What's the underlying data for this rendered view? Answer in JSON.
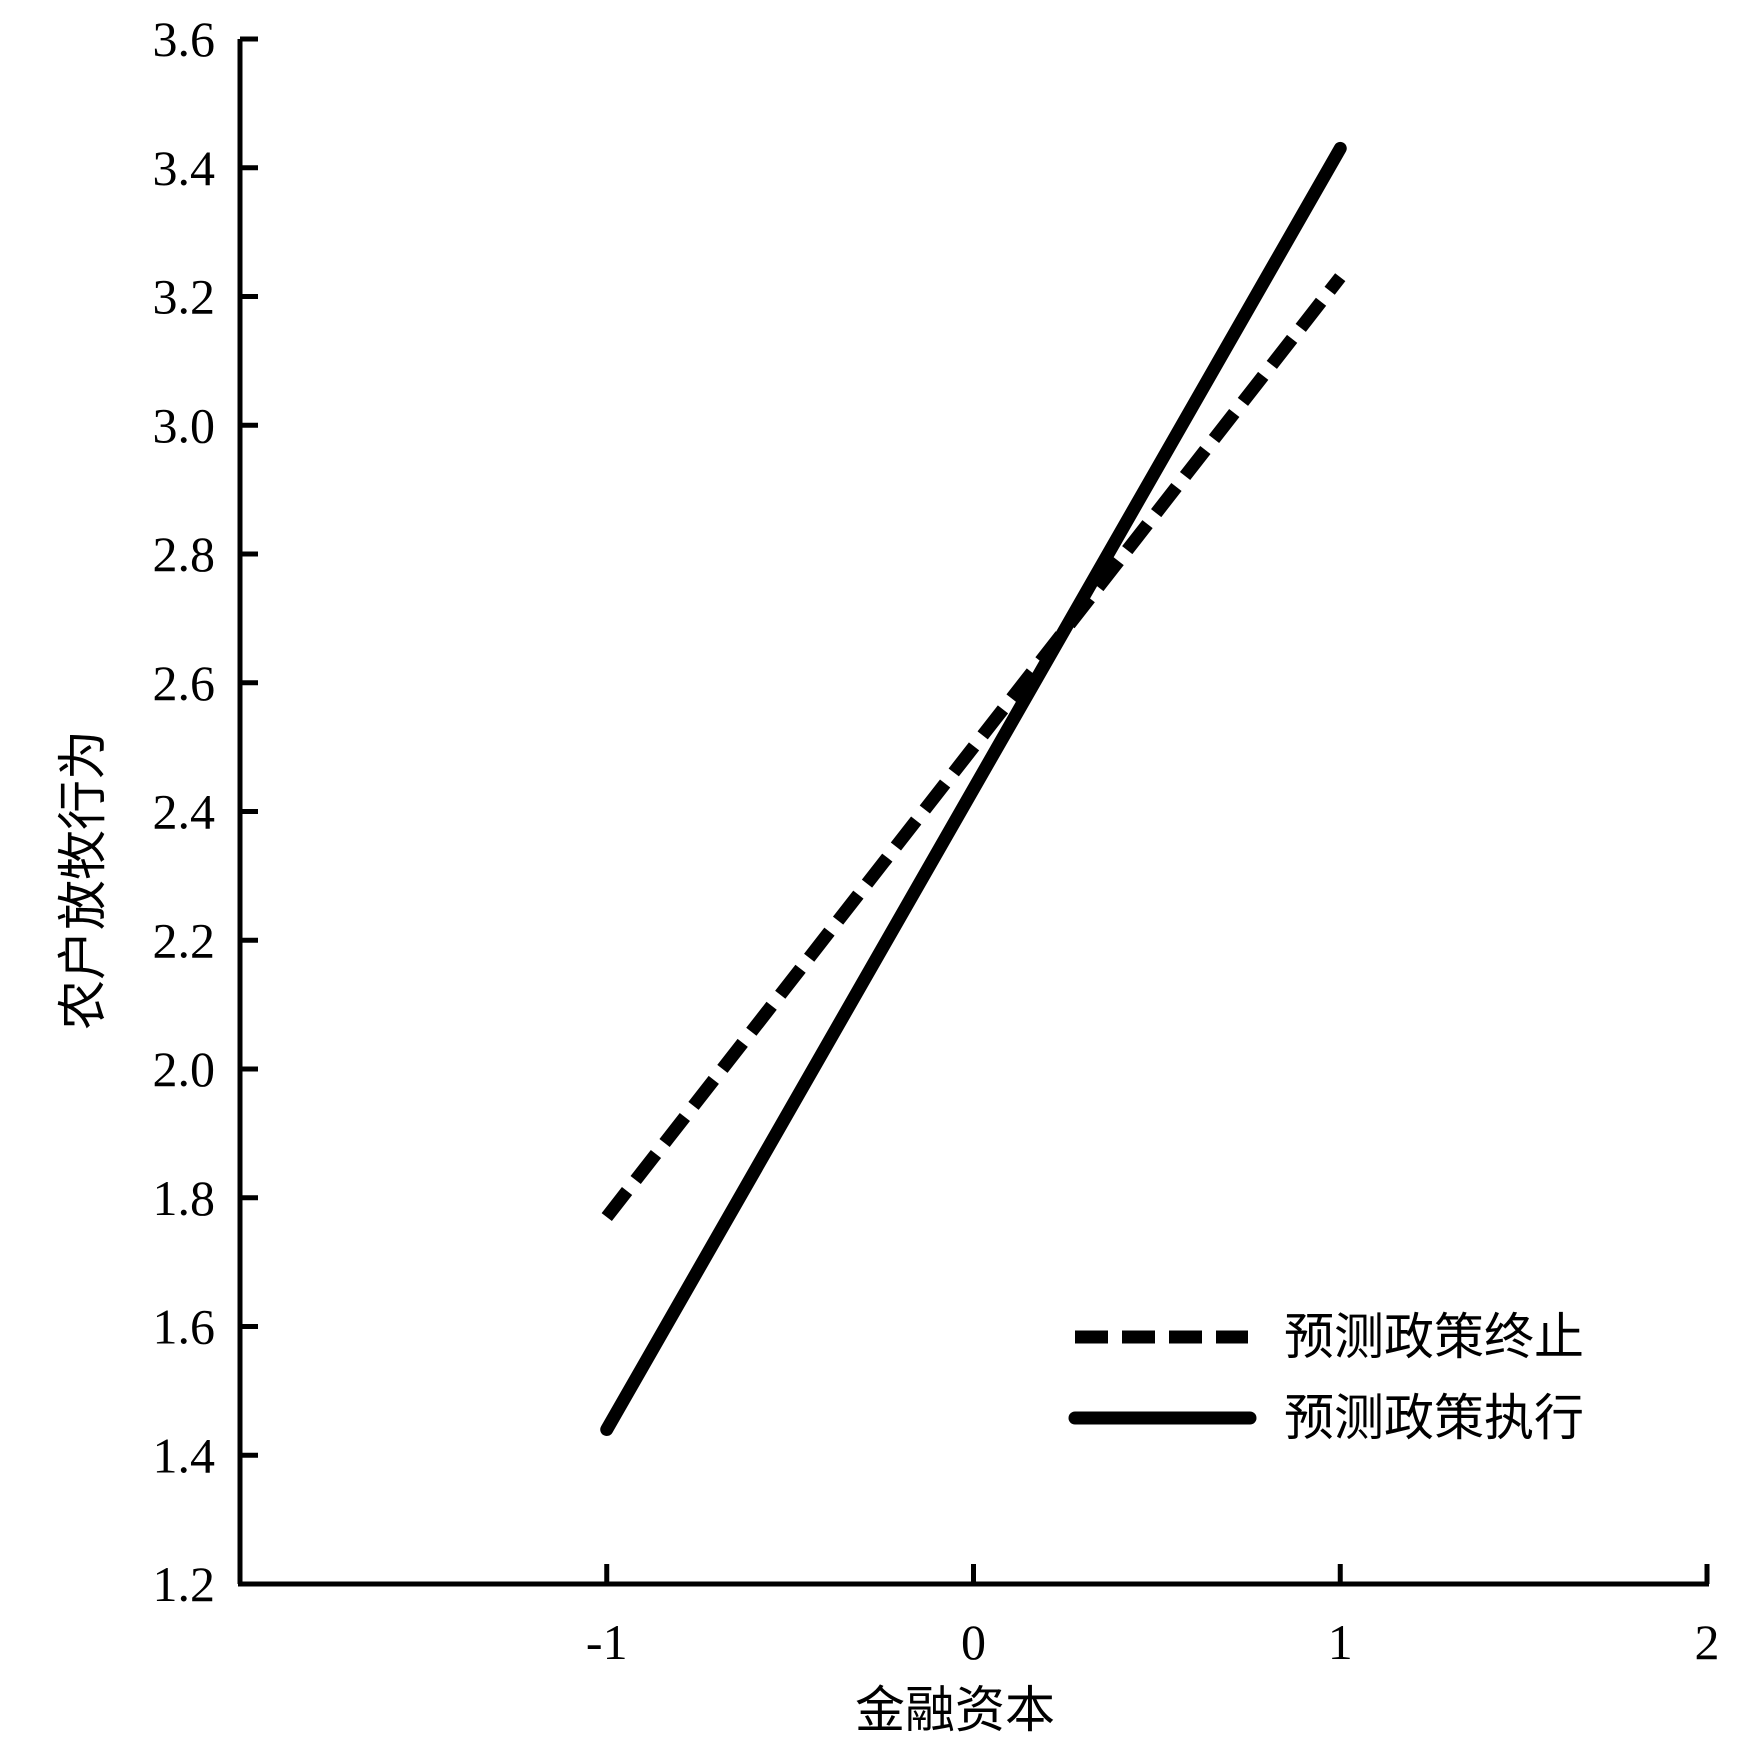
{
  "chart_data": {
    "type": "line",
    "xlabel": "金融资本",
    "ylabel": "农户放牧行为",
    "xlim": [
      -2,
      2
    ],
    "ylim": [
      1.2,
      3.6
    ],
    "x_ticks": [
      -1,
      0,
      1,
      2
    ],
    "x_tick_labels": [
      "-1",
      "0",
      "1",
      "2"
    ],
    "y_ticks": [
      1.2,
      1.4,
      1.6,
      1.8,
      2.0,
      2.2,
      2.4,
      2.6,
      2.8,
      3.0,
      3.2,
      3.4,
      3.6
    ],
    "y_tick_labels": [
      "1.2",
      "1.4",
      "1.6",
      "1.8",
      "2.0",
      "2.2",
      "2.4",
      "2.6",
      "2.8",
      "3.0",
      "3.2",
      "3.4",
      "3.6"
    ],
    "grid": false,
    "legend_position": "bottom-right",
    "series": [
      {
        "name": "预测政策终止",
        "style": "dashed",
        "color": "#000000",
        "x": [
          -1,
          1
        ],
        "y": [
          1.77,
          3.23
        ]
      },
      {
        "name": "预测政策执行",
        "style": "solid",
        "color": "#000000",
        "x": [
          -1,
          1
        ],
        "y": [
          1.44,
          3.43
        ]
      }
    ]
  }
}
